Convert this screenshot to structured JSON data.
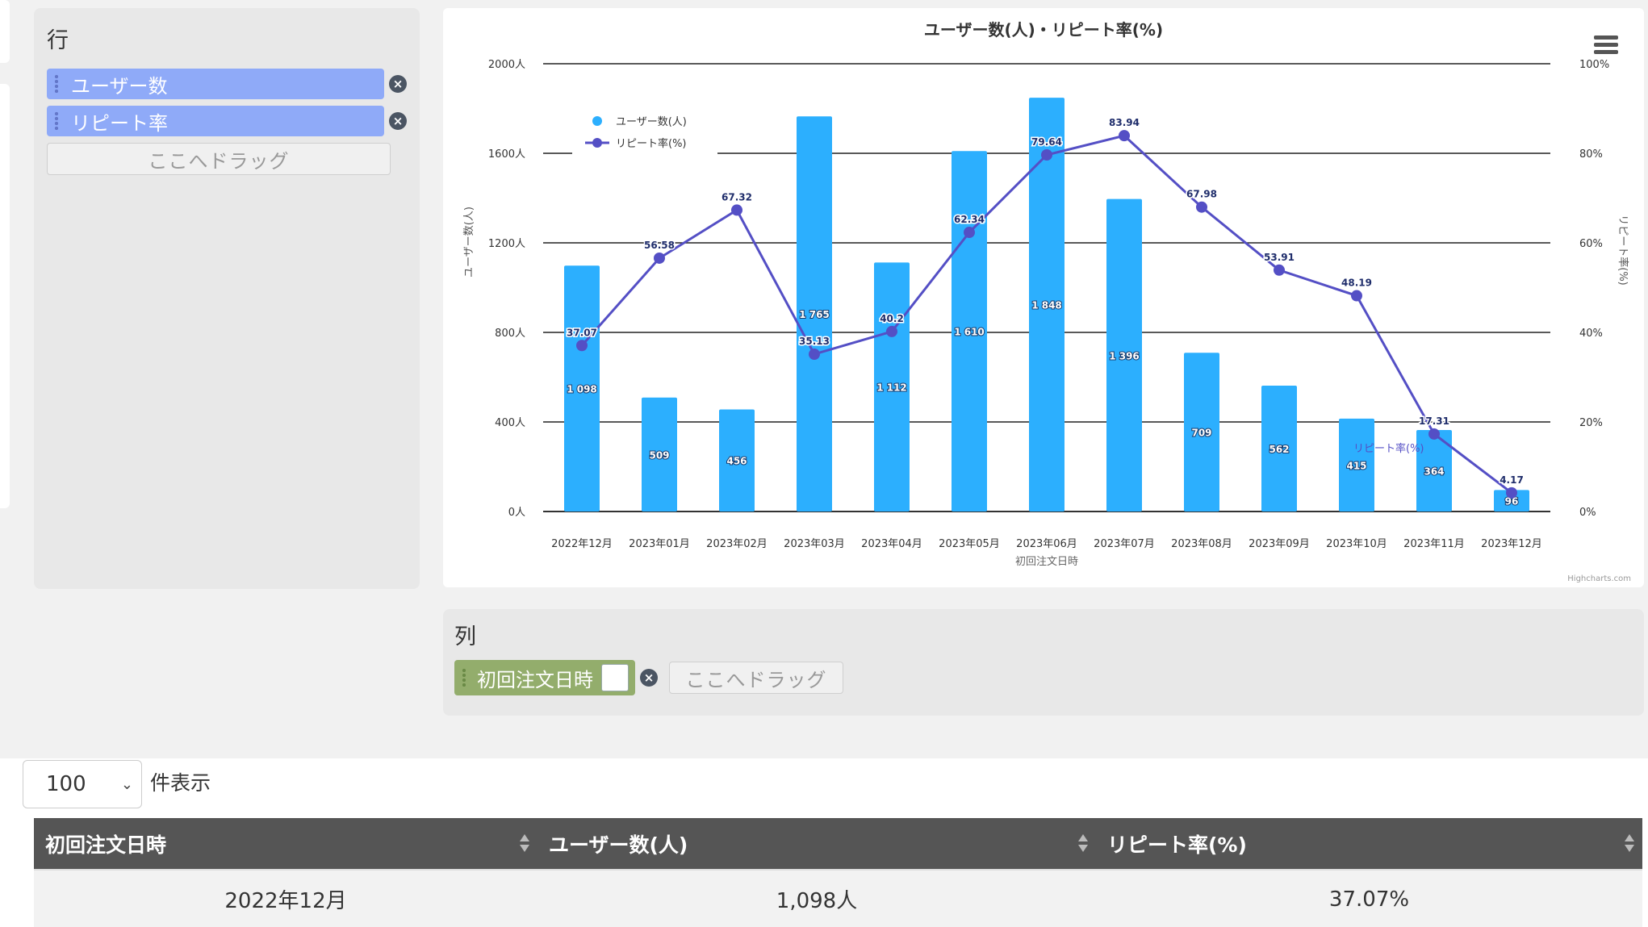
{
  "rows_panel": {
    "title": "行",
    "fields": [
      {
        "label": "ユーザー数"
      },
      {
        "label": "リピート率"
      }
    ],
    "drop_zone": "ここへドラッグ"
  },
  "columns_panel": {
    "title": "列",
    "field": "初回注文日時",
    "drop_zone": "ここへドラッグ"
  },
  "table_controls": {
    "page_length": "100",
    "page_length_label": "件表示"
  },
  "table": {
    "headers": [
      "初回注文日時",
      "ユーザー数(人)",
      "リピート率(%)"
    ],
    "rows": [
      [
        "2022年12月",
        "1,098人",
        "37.07%"
      ]
    ]
  },
  "colors": {
    "bar": "#2caffe",
    "line": "#544fc5",
    "point_label": "#1f2d6b"
  },
  "chart_data": {
    "type": "bar",
    "title": "ユーザー数(人)・リピート率(%)",
    "xlabel": "初回注文日時",
    "ylabel_left": "ユーザー数(人)",
    "ylabel_right": "リピート率(%)",
    "credit": "Highcharts.com",
    "categories": [
      "2022年12月",
      "2023年01月",
      "2023年02月",
      "2023年03月",
      "2023年04月",
      "2023年05月",
      "2023年06月",
      "2023年07月",
      "2023年08月",
      "2023年09月",
      "2023年10月",
      "2023年11月",
      "2023年12月"
    ],
    "series": [
      {
        "name": "ユーザー数(人)",
        "type": "column",
        "axis": "left",
        "values": [
          1098,
          509,
          456,
          1765,
          1112,
          1610,
          1848,
          1396,
          709,
          562,
          415,
          364,
          96
        ],
        "labels": [
          "1 098",
          "509",
          "456",
          "1 765",
          "1 112",
          "1 610",
          "1 848",
          "1 396",
          "709",
          "562",
          "415",
          "364",
          "96"
        ]
      },
      {
        "name": "リピート率(%)",
        "type": "line",
        "axis": "right",
        "values": [
          37.07,
          56.58,
          67.32,
          35.13,
          40.2,
          62.34,
          79.64,
          83.94,
          67.98,
          53.91,
          48.19,
          17.31,
          4.17
        ],
        "labels": [
          "37.07",
          "56.58",
          "67.32",
          "35.13",
          "40.2",
          "62.34",
          "79.64",
          "83.94",
          "67.98",
          "53.91",
          "48.19",
          "17.31",
          "4.17"
        ]
      }
    ],
    "left_axis": {
      "min": 0,
      "max": 2000,
      "ticks": [
        "0人",
        "400人",
        "800人",
        "1200人",
        "1600人",
        "2000人"
      ]
    },
    "right_axis": {
      "min": 0,
      "max": 100,
      "ticks": [
        "0%",
        "20%",
        "40%",
        "60%",
        "80%",
        "100%"
      ]
    },
    "series_end_label": "リピート率(%)",
    "legend_position": "top-left",
    "grid": true
  }
}
